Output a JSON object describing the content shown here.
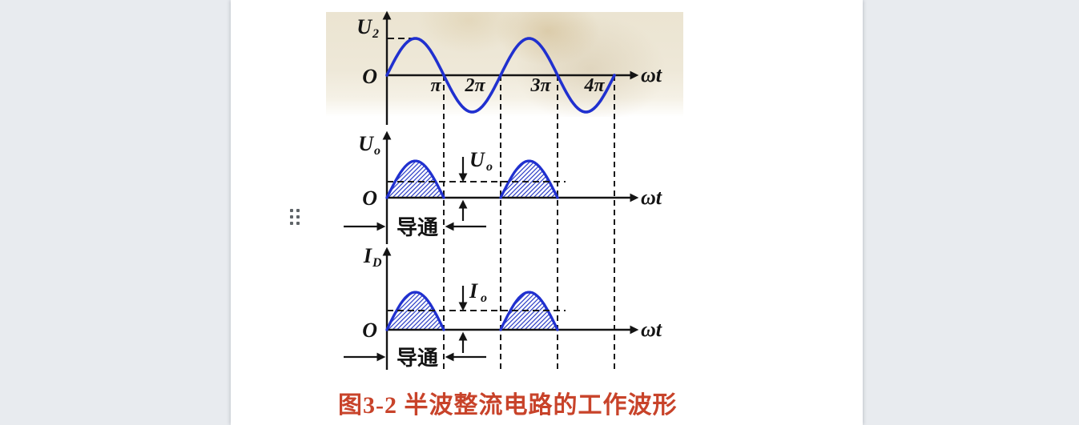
{
  "caption": {
    "text": "图3-2 半波整流电路的工作波形",
    "color": "#c8432a"
  },
  "icons": {
    "drag_handle": "drag-dots-icon"
  },
  "chart_data": [
    {
      "id": "u2",
      "type": "line",
      "waveform": "sine",
      "periods": 2,
      "amplitude_rel": 1,
      "y_label": {
        "base": "U",
        "sub": "2"
      },
      "origin": "O",
      "x_label": "ωt",
      "x_ticks": [
        "π",
        "2π",
        "3π",
        "4π"
      ],
      "x_tick_values_pi": [
        1,
        2,
        3,
        4
      ],
      "peak_guide_dash": true,
      "line_color": "#2030cf",
      "grid": "dashed vertical lines at π, 2π, 3π, 4π shared by all three plots",
      "legend": "none"
    },
    {
      "id": "uo",
      "type": "area",
      "waveform": "half-rectified-sine",
      "periods": 2,
      "hump_intervals_pi": [
        [
          0,
          1
        ],
        [
          2,
          3
        ]
      ],
      "average_level_rel": 0.43,
      "avg_label": {
        "base": "U",
        "sub": "o"
      },
      "y_label": {
        "base": "U",
        "sub": "o"
      },
      "origin": "O",
      "x_label": "ωt",
      "conduction_label": "导通",
      "hatch": true,
      "line_color": "#2030cf"
    },
    {
      "id": "id",
      "type": "area",
      "waveform": "half-rectified-sine",
      "periods": 2,
      "hump_intervals_pi": [
        [
          0,
          1
        ],
        [
          2,
          3
        ]
      ],
      "average_level_rel": 0.53,
      "avg_label": {
        "base": "I",
        "sub": "o"
      },
      "y_label": {
        "base": "I",
        "sub": "D"
      },
      "origin": "O",
      "x_label": "ωt",
      "conduction_label": "导通",
      "hatch": true,
      "line_color": "#2030cf"
    }
  ]
}
